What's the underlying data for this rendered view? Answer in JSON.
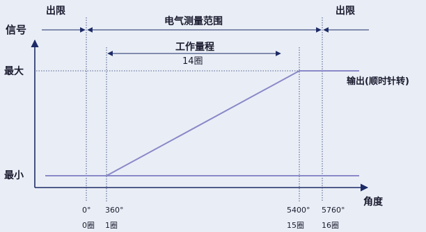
{
  "y_axis": {
    "label": "信号",
    "max_label": "最大",
    "min_label": "最小"
  },
  "x_axis": {
    "label": "角度"
  },
  "top_regions": {
    "left_out_of_range": "出限",
    "electrical_range": "电气测量范围",
    "right_out_of_range": "出限"
  },
  "working_range": {
    "title": "工作量程",
    "turns": "14圈"
  },
  "output_label": "输出(顺时针转)",
  "ticks": [
    {
      "angle": "0°",
      "turns": "0圈"
    },
    {
      "angle": "360°",
      "turns": "1圈"
    },
    {
      "angle": "5400°",
      "turns": "15圈"
    },
    {
      "angle": "5760°",
      "turns": "16圈"
    }
  ],
  "colors": {
    "background": "#e9eef6",
    "text": "#1a1a2e",
    "axis": "#1c2a66",
    "output_line": "#8a88c8",
    "dashed": "#1c2a66"
  }
}
